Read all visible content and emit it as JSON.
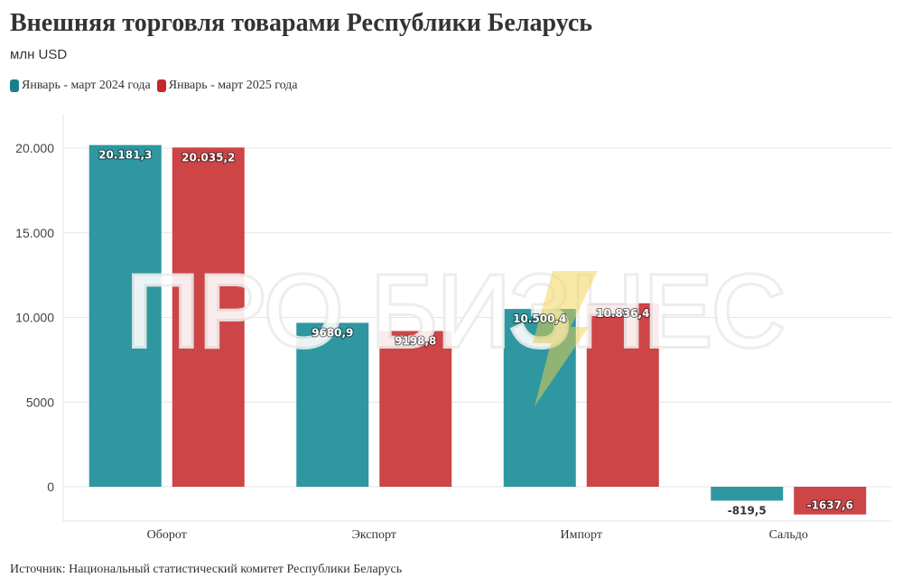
{
  "title": "Внешняя торговля товарами Республики Беларусь",
  "subtitle": "млн USD",
  "source": "Источник: Национальный статистический комитет Республики Беларусь",
  "watermark": "ПРО БИЗНЕС",
  "colors": {
    "series_2024": "#2e97a0",
    "series_2025": "#cd4547",
    "watermark_bolt": "#f2d24a"
  },
  "chart_data": {
    "type": "bar",
    "title": "Внешняя торговля товарами Республики Беларусь",
    "ylabel": "млн USD",
    "categories": [
      "Оборот",
      "Экспорт",
      "Импорт",
      "Сальдо"
    ],
    "series": [
      {
        "name": "Январь - март 2024 года",
        "values": [
          20181.3,
          9680.9,
          10500.4,
          -819.5
        ],
        "labels": [
          "20.181,3",
          "9680,9",
          "10.500,4",
          "-819,5"
        ]
      },
      {
        "name": "Январь - март 2025 года",
        "values": [
          20035.2,
          9198.8,
          10836.4,
          -1637.6
        ],
        "labels": [
          "20.035,2",
          "9198,8",
          "10.836,4",
          "-1637,6"
        ]
      }
    ],
    "yticks": [
      0,
      5000,
      10000,
      15000,
      20000
    ],
    "ytick_labels": [
      "0",
      "5000",
      "10.000",
      "15.000",
      "20.000"
    ],
    "ylim": [
      -2000,
      22000
    ],
    "grid": true,
    "legend": "top-left"
  }
}
